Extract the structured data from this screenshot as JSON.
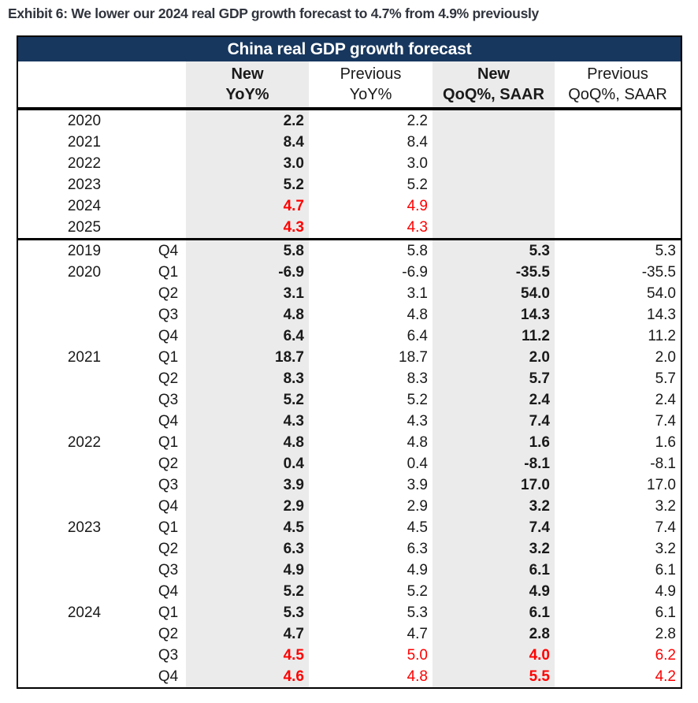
{
  "exhibit_title": "Exhibit 6: We lower our 2024 real GDP growth forecast to 4.7% from 4.9% previously",
  "table": {
    "title": "China real GDP growth forecast",
    "columns": [
      {
        "line1": "New",
        "line2": "YoY%"
      },
      {
        "line1": "Previous",
        "line2": "YoY%"
      },
      {
        "line1": "New",
        "line2": "QoQ%, SAAR"
      },
      {
        "line1": "Previous",
        "line2": "QoQ%, SAAR"
      }
    ],
    "annual_rows": [
      {
        "year": "2020",
        "quarter": "",
        "new_yoy": "2.2",
        "prev_yoy": "2.2",
        "new_qoq": "",
        "prev_qoq": "",
        "red": false
      },
      {
        "year": "2021",
        "quarter": "",
        "new_yoy": "8.4",
        "prev_yoy": "8.4",
        "new_qoq": "",
        "prev_qoq": "",
        "red": false
      },
      {
        "year": "2022",
        "quarter": "",
        "new_yoy": "3.0",
        "prev_yoy": "3.0",
        "new_qoq": "",
        "prev_qoq": "",
        "red": false
      },
      {
        "year": "2023",
        "quarter": "",
        "new_yoy": "5.2",
        "prev_yoy": "5.2",
        "new_qoq": "",
        "prev_qoq": "",
        "red": false
      },
      {
        "year": "2024",
        "quarter": "",
        "new_yoy": "4.7",
        "prev_yoy": "4.9",
        "new_qoq": "",
        "prev_qoq": "",
        "red": true
      },
      {
        "year": "2025",
        "quarter": "",
        "new_yoy": "4.3",
        "prev_yoy": "4.3",
        "new_qoq": "",
        "prev_qoq": "",
        "red": true
      }
    ],
    "quarterly_rows": [
      {
        "year": "2019",
        "quarter": "Q4",
        "new_yoy": "5.8",
        "prev_yoy": "5.8",
        "new_qoq": "5.3",
        "prev_qoq": "5.3",
        "red": false
      },
      {
        "year": "2020",
        "quarter": "Q1",
        "new_yoy": "-6.9",
        "prev_yoy": "-6.9",
        "new_qoq": "-35.5",
        "prev_qoq": "-35.5",
        "red": false
      },
      {
        "year": "",
        "quarter": "Q2",
        "new_yoy": "3.1",
        "prev_yoy": "3.1",
        "new_qoq": "54.0",
        "prev_qoq": "54.0",
        "red": false
      },
      {
        "year": "",
        "quarter": "Q3",
        "new_yoy": "4.8",
        "prev_yoy": "4.8",
        "new_qoq": "14.3",
        "prev_qoq": "14.3",
        "red": false
      },
      {
        "year": "",
        "quarter": "Q4",
        "new_yoy": "6.4",
        "prev_yoy": "6.4",
        "new_qoq": "11.2",
        "prev_qoq": "11.2",
        "red": false
      },
      {
        "year": "2021",
        "quarter": "Q1",
        "new_yoy": "18.7",
        "prev_yoy": "18.7",
        "new_qoq": "2.0",
        "prev_qoq": "2.0",
        "red": false
      },
      {
        "year": "",
        "quarter": "Q2",
        "new_yoy": "8.3",
        "prev_yoy": "8.3",
        "new_qoq": "5.7",
        "prev_qoq": "5.7",
        "red": false
      },
      {
        "year": "",
        "quarter": "Q3",
        "new_yoy": "5.2",
        "prev_yoy": "5.2",
        "new_qoq": "2.4",
        "prev_qoq": "2.4",
        "red": false
      },
      {
        "year": "",
        "quarter": "Q4",
        "new_yoy": "4.3",
        "prev_yoy": "4.3",
        "new_qoq": "7.4",
        "prev_qoq": "7.4",
        "red": false
      },
      {
        "year": "2022",
        "quarter": "Q1",
        "new_yoy": "4.8",
        "prev_yoy": "4.8",
        "new_qoq": "1.6",
        "prev_qoq": "1.6",
        "red": false
      },
      {
        "year": "",
        "quarter": "Q2",
        "new_yoy": "0.4",
        "prev_yoy": "0.4",
        "new_qoq": "-8.1",
        "prev_qoq": "-8.1",
        "red": false
      },
      {
        "year": "",
        "quarter": "Q3",
        "new_yoy": "3.9",
        "prev_yoy": "3.9",
        "new_qoq": "17.0",
        "prev_qoq": "17.0",
        "red": false
      },
      {
        "year": "",
        "quarter": "Q4",
        "new_yoy": "2.9",
        "prev_yoy": "2.9",
        "new_qoq": "3.2",
        "prev_qoq": "3.2",
        "red": false
      },
      {
        "year": "2023",
        "quarter": "Q1",
        "new_yoy": "4.5",
        "prev_yoy": "4.5",
        "new_qoq": "7.4",
        "prev_qoq": "7.4",
        "red": false
      },
      {
        "year": "",
        "quarter": "Q2",
        "new_yoy": "6.3",
        "prev_yoy": "6.3",
        "new_qoq": "3.2",
        "prev_qoq": "3.2",
        "red": false
      },
      {
        "year": "",
        "quarter": "Q3",
        "new_yoy": "4.9",
        "prev_yoy": "4.9",
        "new_qoq": "6.1",
        "prev_qoq": "6.1",
        "red": false
      },
      {
        "year": "",
        "quarter": "Q4",
        "new_yoy": "5.2",
        "prev_yoy": "5.2",
        "new_qoq": "4.9",
        "prev_qoq": "4.9",
        "red": false
      },
      {
        "year": "2024",
        "quarter": "Q1",
        "new_yoy": "5.3",
        "prev_yoy": "5.3",
        "new_qoq": "6.1",
        "prev_qoq": "6.1",
        "red": false
      },
      {
        "year": "",
        "quarter": "Q2",
        "new_yoy": "4.7",
        "prev_yoy": "4.7",
        "new_qoq": "2.8",
        "prev_qoq": "2.8",
        "red": false
      },
      {
        "year": "",
        "quarter": "Q3",
        "new_yoy": "4.5",
        "prev_yoy": "5.0",
        "new_qoq": "4.0",
        "prev_qoq": "6.2",
        "red": true
      },
      {
        "year": "",
        "quarter": "Q4",
        "new_yoy": "4.6",
        "prev_yoy": "4.8",
        "new_qoq": "5.5",
        "prev_qoq": "4.2",
        "red": true
      }
    ]
  },
  "colors": {
    "title_bar_bg": "#17375e",
    "highlight_column_bg": "#ebebeb",
    "forecast_red": "#ff0000"
  }
}
